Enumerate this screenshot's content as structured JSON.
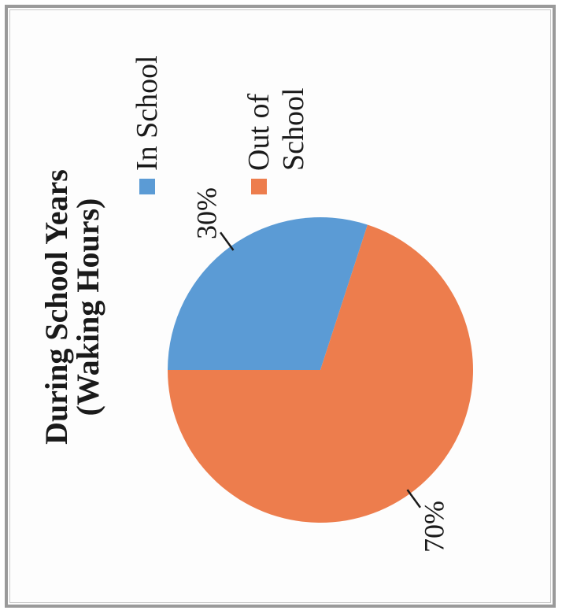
{
  "chart_data": {
    "type": "pie",
    "title": "During School Years",
    "subtitle": "(Waking Hours)",
    "slices": [
      {
        "name": "In School",
        "value": 30,
        "label": "30%",
        "color": "#5b9bd5"
      },
      {
        "name": "Out of School",
        "value": 70,
        "label": "70%",
        "color": "#ed7d4d"
      }
    ],
    "legend": {
      "placement": "right",
      "items": [
        {
          "label_lines": [
            "In School"
          ],
          "color": "#5b9bd5"
        },
        {
          "label_lines": [
            "Out of",
            "School"
          ],
          "color": "#ed7d4d"
        }
      ]
    },
    "orientation": "rotated 90° counter-clockwise"
  }
}
